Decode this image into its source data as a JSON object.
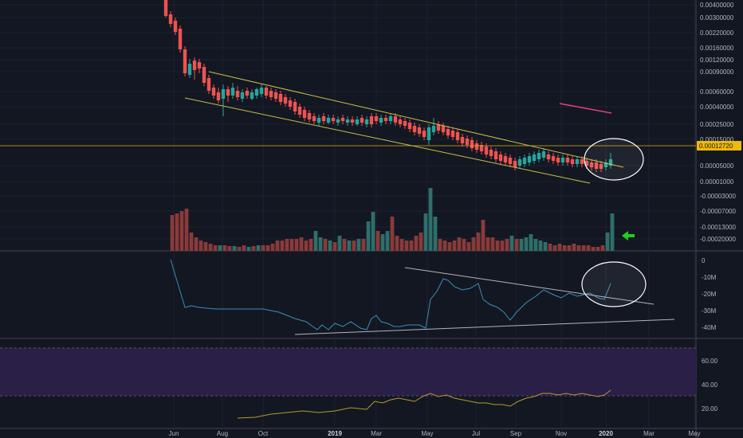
{
  "chart_data": {
    "type": "candlestick",
    "colors": {
      "background": "#131722",
      "grid": "#1e2230",
      "up": "#26a69a",
      "down": "#ef5350",
      "volume_up": "#2e6f6a",
      "volume_down": "#8a3a3a",
      "channel": "#c8c04a",
      "current_price": "#f0b90b",
      "obv_line": "#3a8fb7",
      "rsi_line": "#b59a2e",
      "rsi_band": "#2a1f46",
      "annotation": "#ffffff",
      "pink_line": "#e0457a",
      "arrow": "#22cc22"
    },
    "price_axis": {
      "labels": [
        "0.00400000",
        "0.00300000",
        "0.00220000",
        "0.00160000",
        "0.00120000",
        "0.00090000",
        "0.00060000",
        "0.00040000",
        "0.00025000",
        "0.00015000",
        "0.00005000",
        "0.00001000",
        "-0.00003000",
        "-0.00007000",
        "-0.00013000",
        "-0.00020000"
      ],
      "current_price_label": "0.00012720"
    },
    "obv_axis": {
      "labels": [
        "0",
        "-10M",
        "-20M",
        "-30M",
        "-40M"
      ]
    },
    "rsi_axis": {
      "labels": [
        "60.00",
        "40.00",
        "20.00"
      ]
    },
    "time_axis": {
      "labels": [
        {
          "text": "Jun",
          "bold": false
        },
        {
          "text": "Aug",
          "bold": false
        },
        {
          "text": "Oct",
          "bold": false
        },
        {
          "text": "2019",
          "bold": true
        },
        {
          "text": "Mar",
          "bold": false
        },
        {
          "text": "May",
          "bold": false
        },
        {
          "text": "Jul",
          "bold": false
        },
        {
          "text": "Sep",
          "bold": false
        },
        {
          "text": "Nov",
          "bold": false
        },
        {
          "text": "2020",
          "bold": true
        },
        {
          "text": "Mar",
          "bold": false
        },
        {
          "text": "May",
          "bold": false
        }
      ]
    },
    "series": [
      {
        "name": "price_close_approx",
        "values": [
          0.004,
          0.003,
          0.0022,
          0.0016,
          0.0009,
          0.0009,
          0.0012,
          0.0008,
          0.0006,
          0.0005,
          0.0005,
          0.0006,
          0.0005,
          0.0005,
          0.0006,
          0.0005,
          0.0004,
          0.00035,
          0.0003,
          0.00025,
          0.00025,
          0.00025,
          0.00025,
          0.00025,
          0.00025,
          0.00025,
          0.00025,
          0.00025,
          0.0003,
          0.00025,
          0.00025,
          0.0002,
          0.00018,
          0.00015,
          0.00015,
          0.0002,
          0.0002,
          0.00015,
          0.00012,
          0.00012,
          0.0001,
          8e-05,
          6e-05,
          5e-05,
          6e-05,
          8e-05,
          0.0001,
          9e-05,
          8e-05,
          8e-05,
          8e-05,
          7e-05,
          6e-05,
          6e-05,
          7e-05
        ]
      }
    ],
    "indicators": [
      "Volume",
      "OBV",
      "RSI"
    ]
  }
}
